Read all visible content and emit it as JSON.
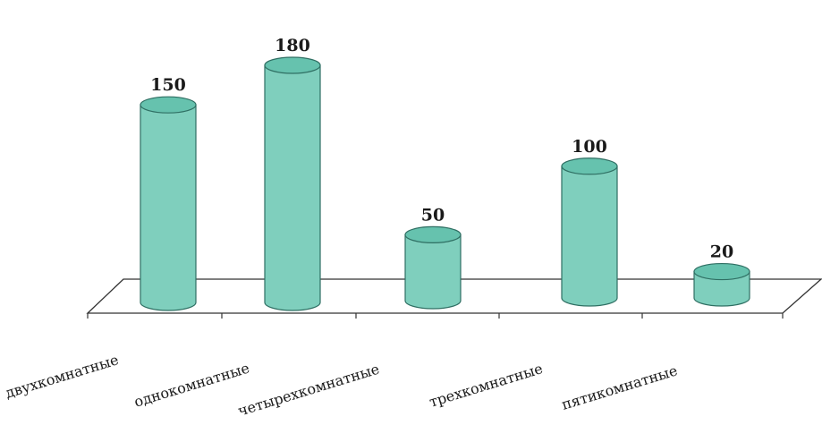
{
  "chart_data": {
    "type": "bar",
    "style": "3d-cylinder",
    "categories": [
      "двухкомнатные",
      "однокомнатные",
      "четырехкомнатные",
      "трехкомнатные",
      "пятикомнатные"
    ],
    "values": [
      150,
      180,
      50,
      100,
      20
    ],
    "title": "",
    "xlabel": "",
    "ylabel": "",
    "ylim": [
      0,
      180
    ],
    "grid": false,
    "legend": "none",
    "colors": {
      "cylinder_body": "#7fcfbd",
      "cylinder_top": "#66c2ae",
      "outline": "#2f6f63",
      "floor": "#ffffff",
      "floor_edge": "#333333"
    }
  }
}
